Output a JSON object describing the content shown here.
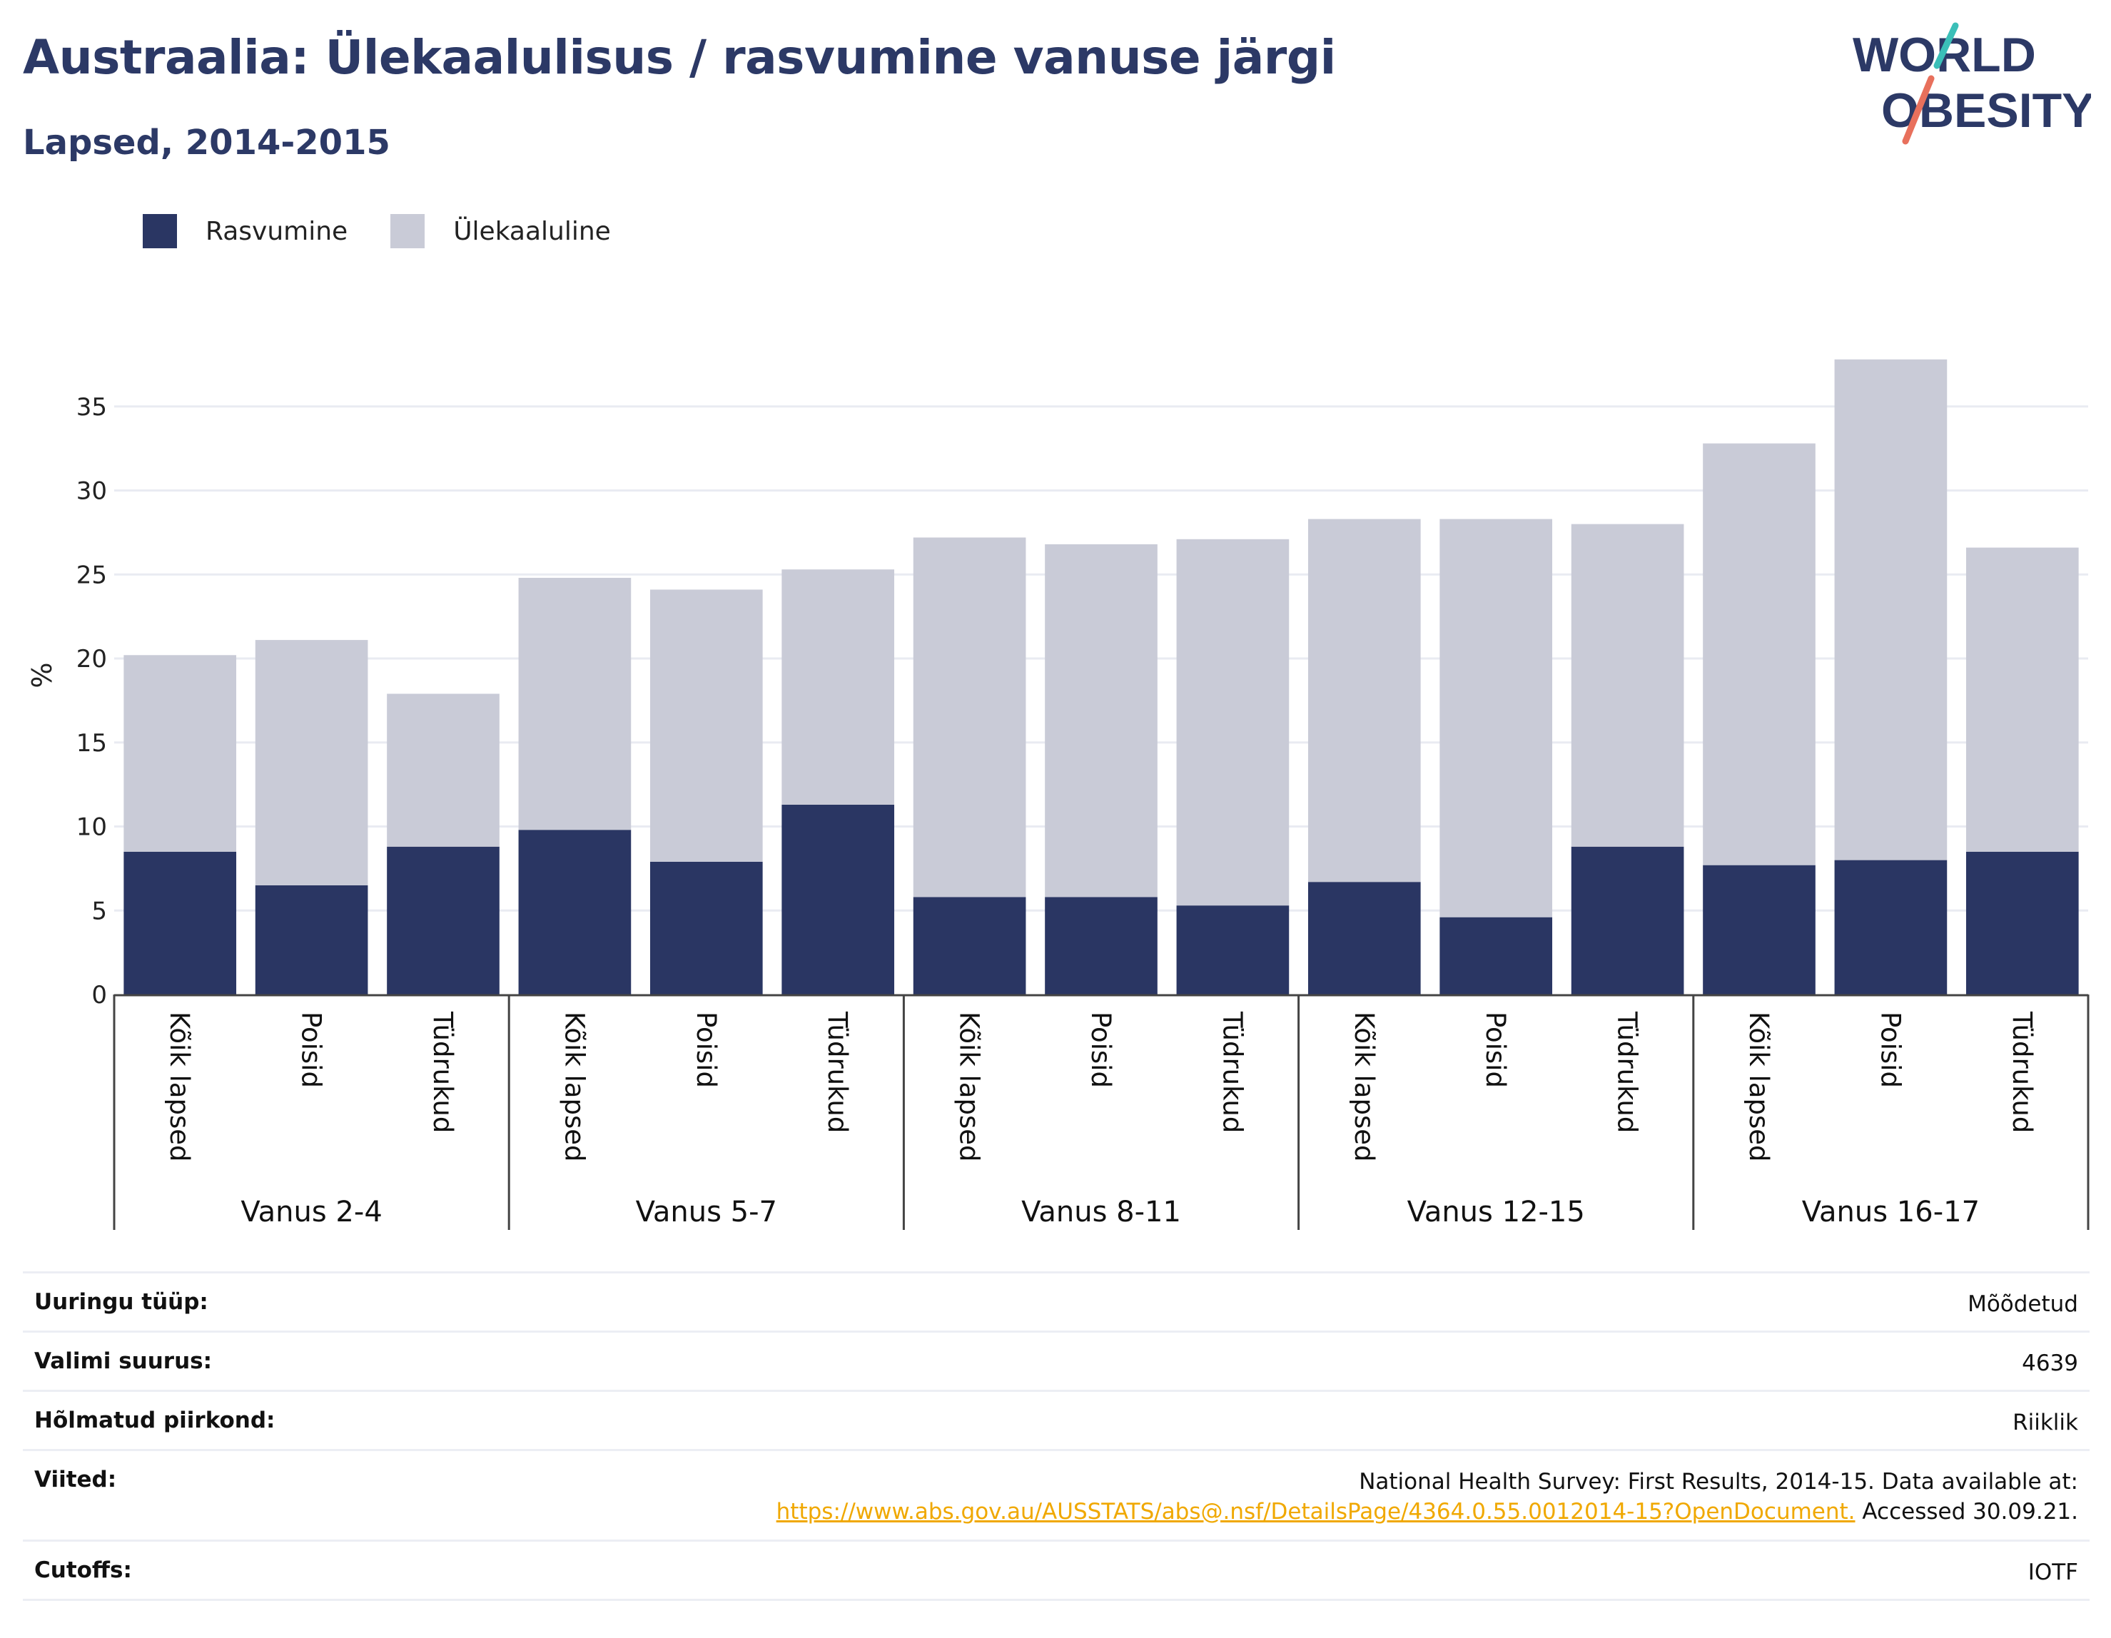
{
  "header": {
    "title": "Austraalia: Ülekaalulisus / rasvumine vanuse järgi",
    "subtitle": "Lapsed, 2014-2015"
  },
  "logo": {
    "line1": "WORLD",
    "line2": "OBESITY"
  },
  "colors": {
    "obesity": "#2a3663",
    "overweight": "#c9cbd7",
    "title": "#2c3966",
    "link": "#f0a800",
    "logo_teal": "#3bbfb8",
    "logo_coral": "#e8705c"
  },
  "legend": [
    {
      "label": "Rasvumine",
      "color": "#2a3663"
    },
    {
      "label": "Ülekaaluline",
      "color": "#c9cbd7"
    }
  ],
  "chart_data": {
    "type": "bar",
    "stacked": true,
    "ylabel": "%",
    "ylim": [
      0,
      38
    ],
    "yticks": [
      0,
      5,
      10,
      15,
      20,
      25,
      30,
      35
    ],
    "grid": true,
    "legend_position": "top-left",
    "groups": [
      "Vanus 2-4",
      "Vanus 5-7",
      "Vanus 8-11",
      "Vanus 12-15",
      "Vanus 16-17"
    ],
    "subcategories": [
      "Kõik lapsed",
      "Poisid",
      "Tüdrukud"
    ],
    "series": [
      {
        "name": "Rasvumine",
        "values": [
          8.5,
          6.5,
          8.8,
          9.8,
          7.9,
          11.3,
          5.8,
          5.8,
          5.3,
          6.7,
          4.6,
          8.8,
          7.7,
          8.0,
          8.5
        ]
      },
      {
        "name": "Ülekaaluline",
        "values": [
          11.7,
          14.6,
          9.1,
          15.0,
          16.2,
          14.0,
          21.4,
          21.0,
          21.8,
          21.6,
          23.7,
          19.2,
          25.1,
          29.8,
          18.1
        ]
      }
    ]
  },
  "info": [
    {
      "label": "Uuringu tüüp:",
      "value": "Mõõdetud"
    },
    {
      "label": "Valimi suurus:",
      "value": "4639"
    },
    {
      "label": "Hõlmatud piirkond:",
      "value": "Riiklik"
    },
    {
      "label": "Viited:",
      "value": "National Health Survey: First Results, 2014-15. Data available at:",
      "link": "https://www.abs.gov.au/AUSSTATS/abs@.nsf/DetailsPage/4364.0.55.0012014-15?OpenDocument.",
      "suffix": " Accessed 30.09.21."
    },
    {
      "label": "Cutoffs:",
      "value": "IOTF"
    }
  ]
}
